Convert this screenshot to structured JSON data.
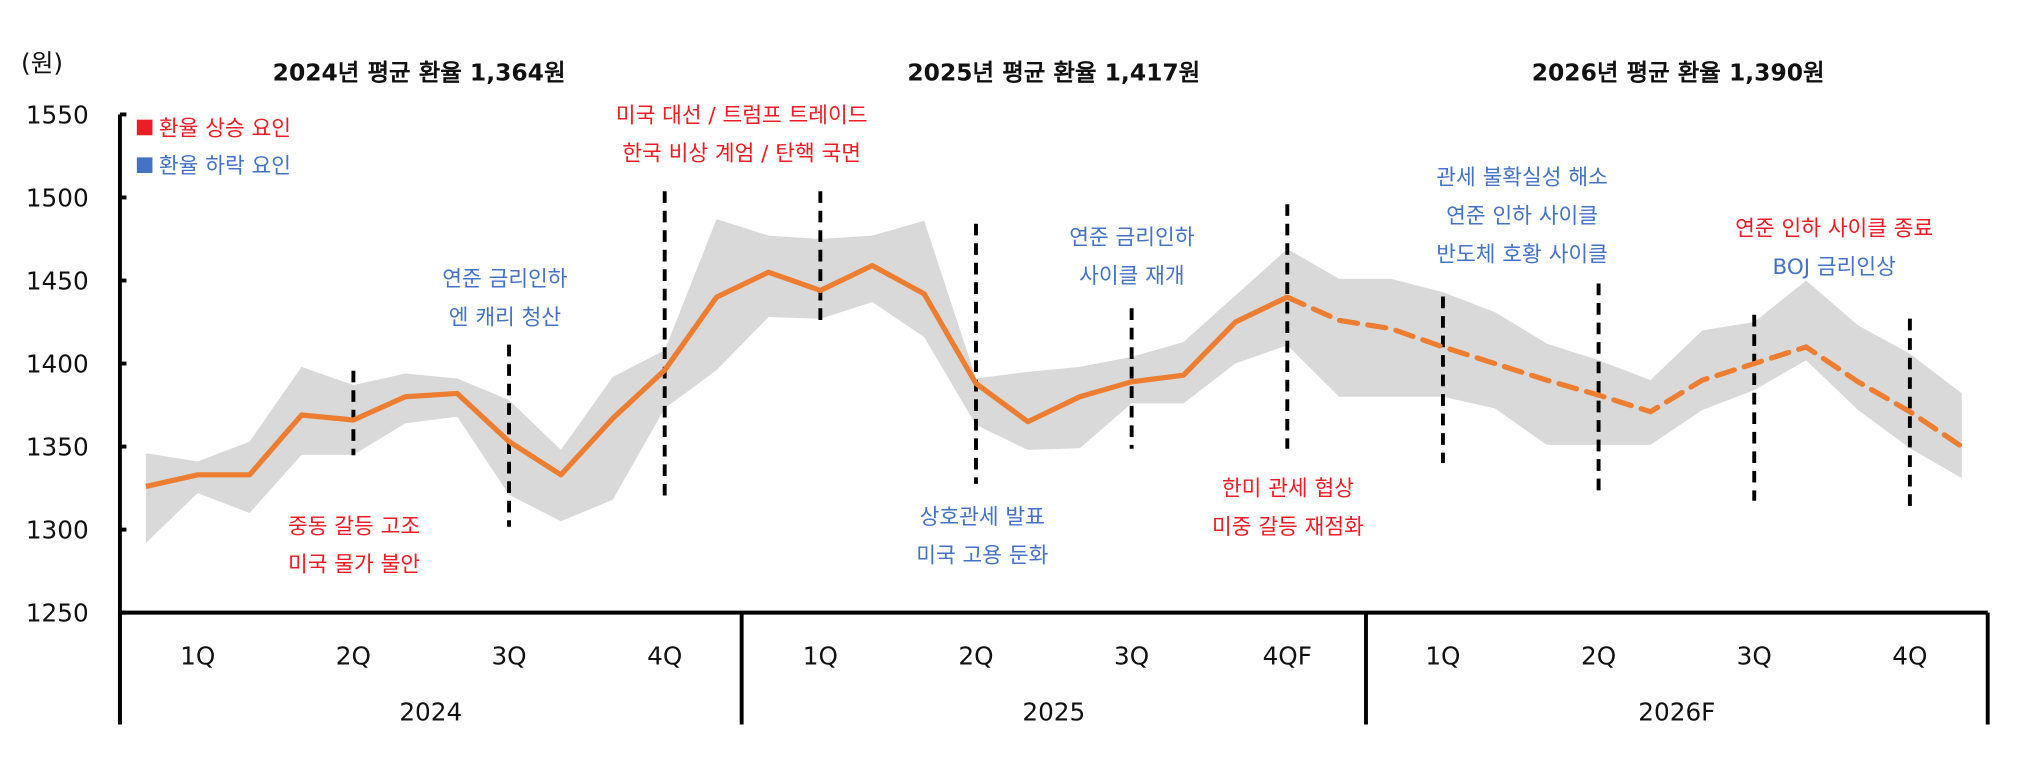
{
  "chart_data": {
    "type": "line",
    "unit_label": "(원)",
    "ylim": [
      1250,
      1550
    ],
    "yticks": [
      1250,
      1300,
      1350,
      1400,
      1450,
      1500,
      1550
    ],
    "grid": false,
    "titles": [
      "2024년 평균 환율 1,364원",
      "2025년 평균 환율 1,417원",
      "2026년 평균 환율 1,390원"
    ],
    "years": [
      "2024",
      "2025",
      "2026F"
    ],
    "quarters": [
      [
        "1Q",
        "2Q",
        "3Q",
        "4Q"
      ],
      [
        "1Q",
        "2Q",
        "3Q",
        "4QF"
      ],
      [
        "1Q",
        "2Q",
        "3Q",
        "4Q"
      ]
    ],
    "legend": [
      {
        "label": "환율 상승 요인",
        "color": "#ee1c25"
      },
      {
        "label": "환율 하락 요인",
        "color": "#4472c4"
      }
    ],
    "colors": {
      "line": "#ed7d31",
      "band": "#d9d9d9",
      "up": "#ee1c25",
      "down": "#4472c4"
    },
    "series": {
      "actual": [
        1326,
        1333,
        1333,
        1369,
        1366,
        1380,
        1382,
        1353,
        1333,
        1367,
        1396,
        1440,
        1455,
        1444,
        1459,
        1442,
        1388,
        1365,
        1380,
        1389,
        1393,
        1425,
        1440
      ],
      "forecast": [
        1440,
        1426,
        1421,
        1410,
        1400,
        1390,
        1381,
        1371,
        1390,
        1400,
        1410,
        1389,
        1371,
        1350
      ],
      "band_upper": [
        1346,
        1341,
        1353,
        1398,
        1387,
        1394,
        1391,
        1378,
        1348,
        1392,
        1408,
        1487,
        1477,
        1475,
        1477,
        1486,
        1391,
        1395,
        1398,
        1404,
        1413,
        1441,
        1469,
        1451,
        1451,
        1443,
        1431,
        1412,
        1402,
        1390,
        1420,
        1425,
        1450,
        1423,
        1406,
        1382
      ],
      "band_lower": [
        1292,
        1322,
        1310,
        1345,
        1345,
        1364,
        1368,
        1321,
        1305,
        1318,
        1373,
        1396,
        1428,
        1427,
        1437,
        1416,
        1363,
        1348,
        1349,
        1376,
        1376,
        1400,
        1411,
        1380,
        1380,
        1380,
        1373,
        1351,
        1351,
        1351,
        1372,
        1384,
        1402,
        1372,
        1349,
        1331
      ]
    },
    "annotations": [
      {
        "lines": [
          {
            "text": "중동 갈등 고조",
            "type": "up"
          },
          {
            "text": "미국 물가 불안",
            "type": "up"
          }
        ]
      },
      {
        "lines": [
          {
            "text": "연준 금리인하",
            "type": "down"
          },
          {
            "text": "엔 캐리 청산",
            "type": "down"
          }
        ]
      },
      {
        "lines": [
          {
            "text": "미국 대선 / 트럼프 트레이드",
            "type": "up"
          },
          {
            "text": "한국 비상 계엄 / 탄핵 국면",
            "type": "up"
          }
        ]
      },
      {
        "lines": [
          {
            "text": "상호관세 발표",
            "type": "down"
          },
          {
            "text": "미국 고용 둔화",
            "type": "down"
          }
        ]
      },
      {
        "lines": [
          {
            "text": "연준 금리인하",
            "type": "down"
          },
          {
            "text": "사이클 재개",
            "type": "down"
          }
        ]
      },
      {
        "lines": [
          {
            "text": "한미 관세 협상",
            "type": "up"
          },
          {
            "text": "미중 갈등 재점화",
            "type": "up"
          }
        ]
      },
      {
        "lines": [
          {
            "text": "관세 불확실성 해소",
            "type": "down"
          },
          {
            "text": "연준 인하 사이클",
            "type": "down"
          },
          {
            "text": "반도체 호황 사이클",
            "type": "down"
          }
        ]
      },
      {
        "lines": [
          {
            "text": "연준 인하 사이클 종료",
            "type": "up"
          },
          {
            "text": "BOJ 금리인상",
            "type": "down"
          }
        ]
      }
    ]
  }
}
